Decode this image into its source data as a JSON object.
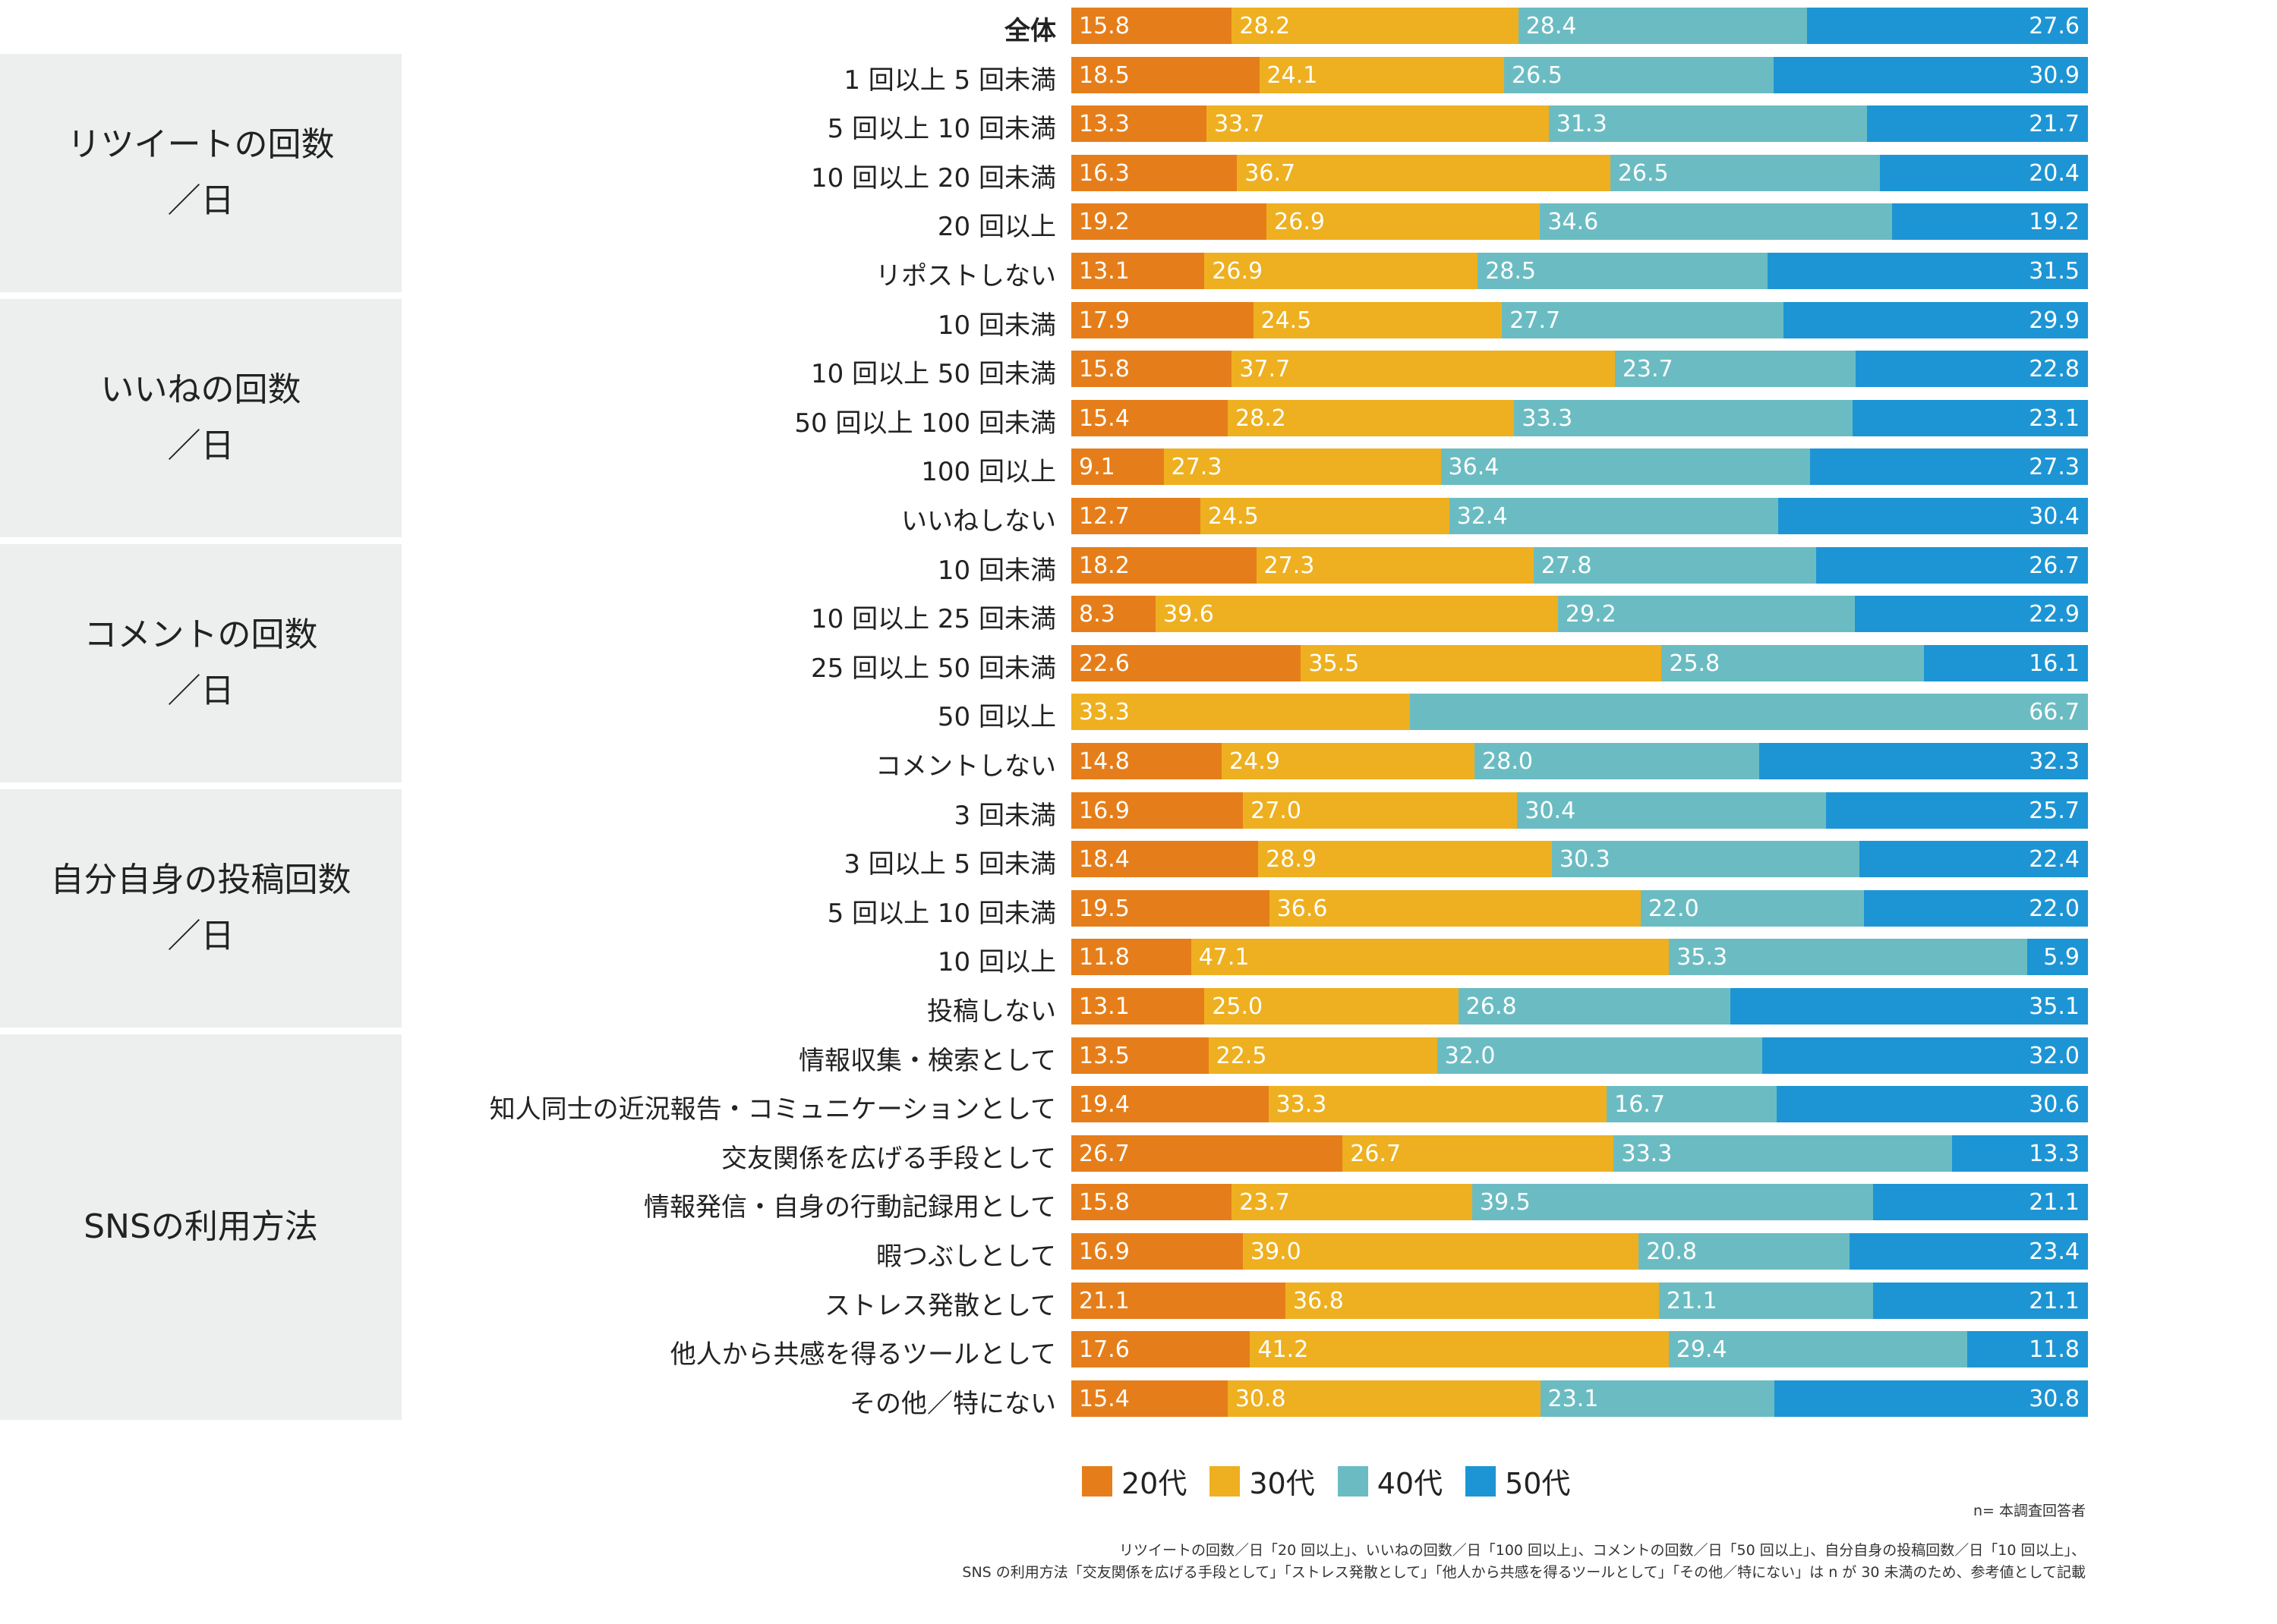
{
  "chart_data": {
    "type": "bar",
    "orientation": "horizontal",
    "stacked": true,
    "xlim": [
      0,
      100
    ],
    "colors": [
      "#e57e1a",
      "#eeb020",
      "#6bbcc2",
      "#1d95d4"
    ],
    "legend": {
      "placement": "bottom-center",
      "entries": [
        "20代",
        "30代",
        "40代",
        "50代"
      ]
    },
    "groups": [
      {
        "label_lines": [
          "リツイートの回数",
          "／日"
        ],
        "first_row": 1,
        "last_row": 5
      },
      {
        "label_lines": [
          "いいねの回数",
          "／日"
        ],
        "first_row": 6,
        "last_row": 10
      },
      {
        "label_lines": [
          "コメントの回数",
          "／日"
        ],
        "first_row": 11,
        "last_row": 15
      },
      {
        "label_lines": [
          "自分自身の投稿回数",
          "／日"
        ],
        "first_row": 16,
        "last_row": 20
      },
      {
        "label_lines": [
          "SNSの利用方法"
        ],
        "first_row": 21,
        "last_row": 28
      }
    ],
    "rows": [
      {
        "label": "全体",
        "bold": true,
        "values": [
          15.8,
          28.2,
          28.4,
          27.6
        ],
        "labels": [
          "15.8",
          "28.2",
          "28.4",
          "27.6"
        ]
      },
      {
        "label": "1 回以上 5 回未満",
        "values": [
          18.5,
          24.1,
          26.5,
          30.9
        ],
        "labels": [
          "18.5",
          "24.1",
          "26.5",
          "30.9"
        ]
      },
      {
        "label": "5 回以上 10 回未満",
        "values": [
          13.3,
          33.7,
          31.3,
          21.7
        ],
        "labels": [
          "13.3",
          "33.7",
          "31.3",
          "21.7"
        ]
      },
      {
        "label": "10 回以上 20 回未満",
        "values": [
          16.3,
          36.7,
          26.5,
          20.4
        ],
        "labels": [
          "16.3",
          "36.7",
          "26.5",
          "20.4"
        ]
      },
      {
        "label": "20 回以上",
        "values": [
          19.2,
          26.9,
          34.6,
          19.2
        ],
        "labels": [
          "19.2",
          "26.9",
          "34.6",
          "19.2"
        ]
      },
      {
        "label": "リポストしない",
        "values": [
          13.1,
          26.9,
          28.5,
          31.5
        ],
        "labels": [
          "13.1",
          "26.9",
          "28.5",
          "31.5"
        ]
      },
      {
        "label": "10 回未満",
        "values": [
          17.9,
          24.5,
          27.7,
          29.9
        ],
        "labels": [
          "17.9",
          "24.5",
          "27.7",
          "29.9"
        ]
      },
      {
        "label": "10 回以上 50 回未満",
        "values": [
          15.8,
          37.7,
          23.7,
          22.8
        ],
        "labels": [
          "15.8",
          "37.7",
          "23.7",
          "22.8"
        ]
      },
      {
        "label": "50 回以上 100 回未満",
        "values": [
          15.4,
          28.2,
          33.3,
          23.1
        ],
        "labels": [
          "15.4",
          "28.2",
          "33.3",
          "23.1"
        ]
      },
      {
        "label": "100 回以上",
        "values": [
          9.1,
          27.3,
          36.4,
          27.3
        ],
        "labels": [
          "9.1",
          "27.3",
          "36.4",
          "27.3"
        ]
      },
      {
        "label": "いいねしない",
        "values": [
          12.7,
          24.5,
          32.4,
          30.4
        ],
        "labels": [
          "12.7",
          "24.5",
          "32.4",
          "30.4"
        ]
      },
      {
        "label": "10 回未満",
        "values": [
          18.2,
          27.3,
          27.8,
          26.7
        ],
        "labels": [
          "18.2",
          "27.3",
          "27.8",
          "26.7"
        ]
      },
      {
        "label": "10 回以上 25 回未満",
        "values": [
          8.3,
          39.6,
          29.2,
          22.9
        ],
        "labels": [
          "8.3",
          "39.6",
          "29.2",
          "22.9"
        ]
      },
      {
        "label": "25 回以上 50 回未満",
        "values": [
          22.6,
          35.5,
          25.8,
          16.1
        ],
        "labels": [
          "22.6",
          "35.5",
          "25.8",
          "16.1"
        ]
      },
      {
        "label": "50 回以上",
        "values": [
          0,
          33.3,
          66.7,
          0
        ],
        "segment_colors": [
          "#e57e1a",
          "#eeb020",
          "#6bbcc2",
          "#1d95d4"
        ],
        "labels": [
          "",
          "33.3",
          "66.7",
          ""
        ]
      },
      {
        "label": "コメントしない",
        "values": [
          14.8,
          24.9,
          28.0,
          32.3
        ],
        "labels": [
          "14.8",
          "24.9",
          "28.0",
          "32.3"
        ]
      },
      {
        "label": "3 回未満",
        "values": [
          16.9,
          27.0,
          30.4,
          25.7
        ],
        "labels": [
          "16.9",
          "27.0",
          "30.4",
          "25.7"
        ]
      },
      {
        "label": "3 回以上 5 回未満",
        "values": [
          18.4,
          28.9,
          30.3,
          22.4
        ],
        "labels": [
          "18.4",
          "28.9",
          "30.3",
          "22.4"
        ]
      },
      {
        "label": "5 回以上 10 回未満",
        "values": [
          19.5,
          36.6,
          22.0,
          22.0
        ],
        "labels": [
          "19.5",
          "36.6",
          "22.0",
          "22.0"
        ]
      },
      {
        "label": "10 回以上",
        "values": [
          11.8,
          47.1,
          35.3,
          5.9
        ],
        "labels": [
          "11.8",
          "47.1",
          "35.3",
          "5.9"
        ]
      },
      {
        "label": "投稿しない",
        "values": [
          13.1,
          25.0,
          26.8,
          35.1
        ],
        "labels": [
          "13.1",
          "25.0",
          "26.8",
          "35.1"
        ]
      },
      {
        "label": "情報収集・検索として",
        "values": [
          13.5,
          22.5,
          32.0,
          32.0
        ],
        "labels": [
          "13.5",
          "22.5",
          "32.0",
          "32.0"
        ]
      },
      {
        "label": "知人同士の近況報告・コミュニケーションとして",
        "values": [
          19.4,
          33.3,
          16.7,
          30.6
        ],
        "labels": [
          "19.4",
          "33.3",
          "16.7",
          "30.6"
        ]
      },
      {
        "label": "交友関係を広げる手段として",
        "values": [
          26.7,
          26.7,
          33.3,
          13.3
        ],
        "labels": [
          "26.7",
          "26.7",
          "33.3",
          "13.3"
        ]
      },
      {
        "label": "情報発信・自身の行動記録用として",
        "values": [
          15.8,
          23.7,
          39.5,
          21.1
        ],
        "labels": [
          "15.8",
          "23.7",
          "39.5",
          "21.1"
        ]
      },
      {
        "label": "暇つぶしとして",
        "values": [
          16.9,
          39.0,
          20.8,
          23.4
        ],
        "labels": [
          "16.9",
          "39.0",
          "20.8",
          "23.4"
        ]
      },
      {
        "label": "ストレス発散として",
        "values": [
          21.1,
          36.8,
          21.1,
          21.1
        ],
        "labels": [
          "21.1",
          "36.8",
          "21.1",
          "21.1"
        ]
      },
      {
        "label": "他人から共感を得るツールとして",
        "values": [
          17.6,
          41.2,
          29.4,
          11.8
        ],
        "labels": [
          "17.6",
          "41.2",
          "29.4",
          "11.8"
        ]
      },
      {
        "label": "その他／特にない",
        "values": [
          15.4,
          30.8,
          23.1,
          30.8
        ],
        "labels": [
          "15.4",
          "30.8",
          "23.1",
          "30.8"
        ]
      }
    ],
    "notes": [
      "n= 本調査回答者",
      "リツイートの回数／日「20 回以上」、いいねの回数／日「100 回以上」、コメントの回数／日「50 回以上」、自分自身の投稿回数／日「10 回以上」、",
      "SNS の利用方法「交友関係を広げる手段として」「ストレス発散として」「他人から共感を得るツールとして」「その他／特にない」は n が 30 未満のため、参考値として記載"
    ]
  }
}
